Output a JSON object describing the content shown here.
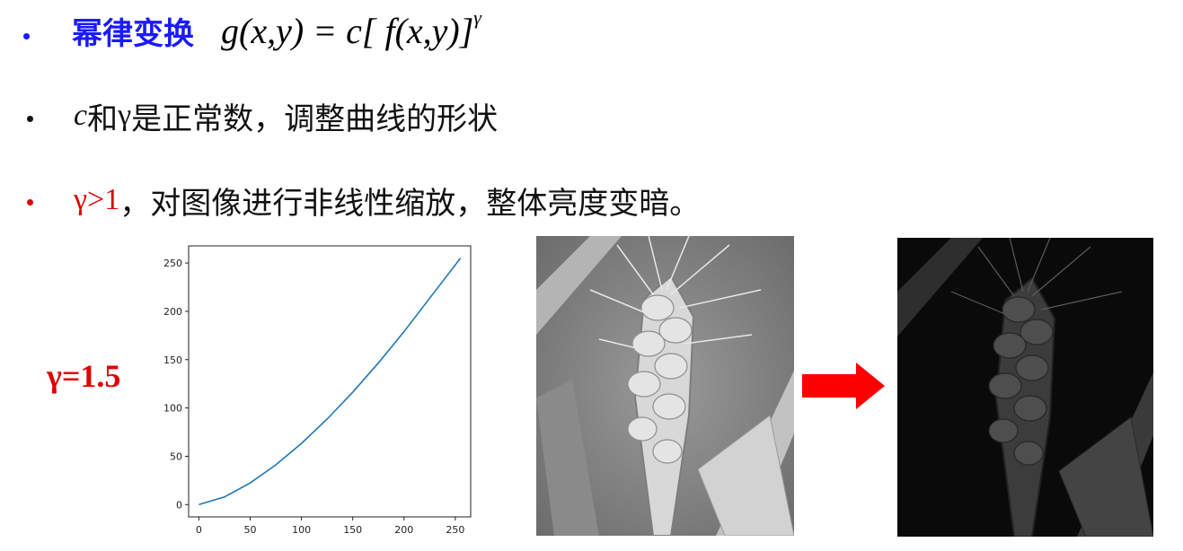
{
  "bullets": {
    "b1": {
      "title": "幂律变换",
      "formula_base": "g(x,y) = c[ f(x,y)]",
      "formula_exp": "γ"
    },
    "b2": {
      "var_c": "c",
      "t1": "和",
      "var_gamma": "γ",
      "t2": "是正常数，调整曲线的形状"
    },
    "b3": {
      "cond": "γ>1",
      "text": "，对图像进行非线性缩放，整体亮度变暗。"
    }
  },
  "gamma_label": "γ=1.5",
  "colors": {
    "title_blue": "#1a1aff",
    "red": "#e00000",
    "line_blue": "#1f77b4"
  },
  "chart_data": {
    "type": "line",
    "title": "",
    "xlabel": "",
    "ylabel": "",
    "xlim": [
      -10,
      265
    ],
    "ylim": [
      -12.75,
      267.75
    ],
    "x_ticks": [
      0,
      50,
      100,
      150,
      200,
      250
    ],
    "y_ticks": [
      0,
      50,
      100,
      150,
      200,
      250
    ],
    "x_tick_labels": [
      "0",
      "50",
      "100",
      "150",
      "200",
      "250"
    ],
    "y_tick_labels": [
      "0",
      "50",
      "100",
      "150",
      "200",
      "250"
    ],
    "series": [
      {
        "x": [
          0,
          25,
          50,
          75,
          100,
          125,
          150,
          175,
          200,
          225,
          255
        ],
        "values": [
          0,
          7.9,
          22.4,
          41.1,
          63.3,
          88.5,
          116.3,
          146.6,
          179.0,
          213.6,
          255
        ]
      }
    ]
  },
  "images": [
    {
      "icon": "wheat-ear-original-image"
    },
    {
      "icon": "wheat-ear-darkened-image"
    }
  ],
  "arrow_icon": "right-arrow-icon"
}
